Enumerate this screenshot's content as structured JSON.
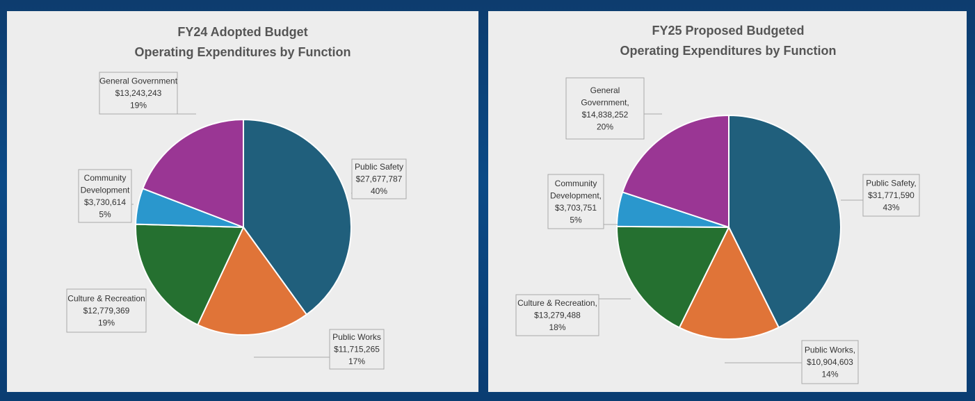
{
  "chart_data": [
    {
      "type": "pie",
      "title": [
        "FY24 Adopted Budget",
        "Operating Expenditures by Function"
      ],
      "slices": [
        {
          "name": "Public Safety",
          "value": 27677787,
          "value_text": "$27,677,787",
          "percent_text": "40%",
          "color": "#205f7c"
        },
        {
          "name": "Public Works",
          "value": 11715265,
          "value_text": "$11,715,265",
          "percent_text": "17%",
          "color": "#e07438"
        },
        {
          "name": "Culture & Recreation",
          "value": 12779369,
          "value_text": "$12,779,369",
          "percent_text": "19%",
          "color": "#257030"
        },
        {
          "name": "Community Development",
          "value": 3730614,
          "value_text": "$3,730,614",
          "percent_text": "5%",
          "color": "#2a97cd"
        },
        {
          "name": "General Government",
          "value": 13243243,
          "value_text": "$13,243,243",
          "percent_text": "19%",
          "color": "#9a3694"
        }
      ],
      "labels": [
        [
          "Public Safety",
          "$27,677,787",
          "40%"
        ],
        [
          "Public Works",
          "$11,715,265",
          "17%"
        ],
        [
          "Culture & Recreation",
          "$12,779,369",
          "19%"
        ],
        [
          "Community",
          "Development",
          "$3,730,614",
          "5%"
        ],
        [
          "General Government",
          "$13,243,243",
          "19%"
        ]
      ]
    },
    {
      "type": "pie",
      "title": [
        "FY25 Proposed Budgeted",
        "Operating  Expenditures by Function"
      ],
      "slices": [
        {
          "name": "Public Safety",
          "value": 31771590,
          "value_text": "$31,771,590",
          "percent_text": "43%",
          "color": "#205f7c"
        },
        {
          "name": "Public Works",
          "value": 10904603,
          "value_text": "$10,904,603",
          "percent_text": "14%",
          "color": "#e07438"
        },
        {
          "name": "Culture & Recreation",
          "value": 13279488,
          "value_text": "$13,279,488",
          "percent_text": "18%",
          "color": "#257030"
        },
        {
          "name": "Community Development",
          "value": 3703751,
          "value_text": "$3,703,751",
          "percent_text": "5%",
          "color": "#2a97cd"
        },
        {
          "name": "General Government",
          "value": 14838252,
          "value_text": "$14,838,252",
          "percent_text": "20%",
          "color": "#9a3694"
        }
      ],
      "labels": [
        [
          "Public Safety,",
          "$31,771,590",
          "43%"
        ],
        [
          "Public Works,",
          "$10,904,603",
          "14%"
        ],
        [
          "Culture & Recreation,",
          "$13,279,488",
          "18%"
        ],
        [
          "Community",
          "Development,",
          "$3,703,751",
          "5%"
        ],
        [
          "General",
          "Government,",
          "$14,838,252",
          "20%"
        ]
      ]
    }
  ]
}
